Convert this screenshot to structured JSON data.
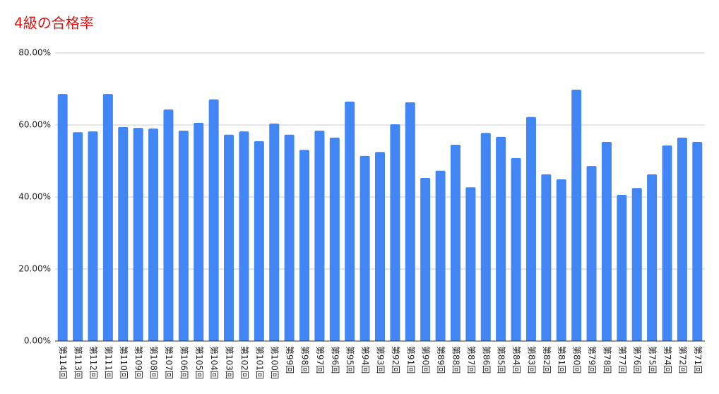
{
  "chart_data": {
    "type": "bar",
    "title": "4級の合格率",
    "categories": [
      "第114回",
      "第113回",
      "第112回",
      "第111回",
      "第110回",
      "第109回",
      "第108回",
      "第107回",
      "第106回",
      "第105回",
      "第104回",
      "第103回",
      "第102回",
      "第101回",
      "第100回",
      "第99回",
      "第98回",
      "第97回",
      "第96回",
      "第95回",
      "第94回",
      "第93回",
      "第92回",
      "第91回",
      "第90回",
      "第89回",
      "第88回",
      "第87回",
      "第86回",
      "第85回",
      "第84回",
      "第83回",
      "第82回",
      "第81回",
      "第80回",
      "第79回",
      "第78回",
      "第77回",
      "第76回",
      "第75回",
      "第74回",
      "第72回",
      "第71回"
    ],
    "values": [
      68.6,
      58.0,
      58.2,
      68.6,
      59.4,
      59.2,
      59.0,
      64.3,
      58.4,
      60.6,
      67.1,
      57.3,
      58.2,
      55.5,
      60.4,
      57.3,
      53.1,
      58.4,
      56.5,
      66.5,
      51.4,
      52.5,
      60.2,
      66.3,
      45.3,
      47.3,
      54.5,
      42.7,
      57.8,
      56.7,
      50.8,
      62.2,
      46.3,
      44.9,
      69.8,
      48.6,
      55.3,
      40.6,
      42.5,
      46.3,
      54.3,
      56.5,
      55.3
    ],
    "color": "#4285f4",
    "ylim": [
      0,
      80
    ],
    "yticks": [
      {
        "value": 0,
        "label": "0.00%"
      },
      {
        "value": 20,
        "label": "20.00%"
      },
      {
        "value": 40,
        "label": "40.00%"
      },
      {
        "value": 60,
        "label": "60.00%"
      },
      {
        "value": 80,
        "label": "80.00%"
      }
    ],
    "grid": true
  }
}
